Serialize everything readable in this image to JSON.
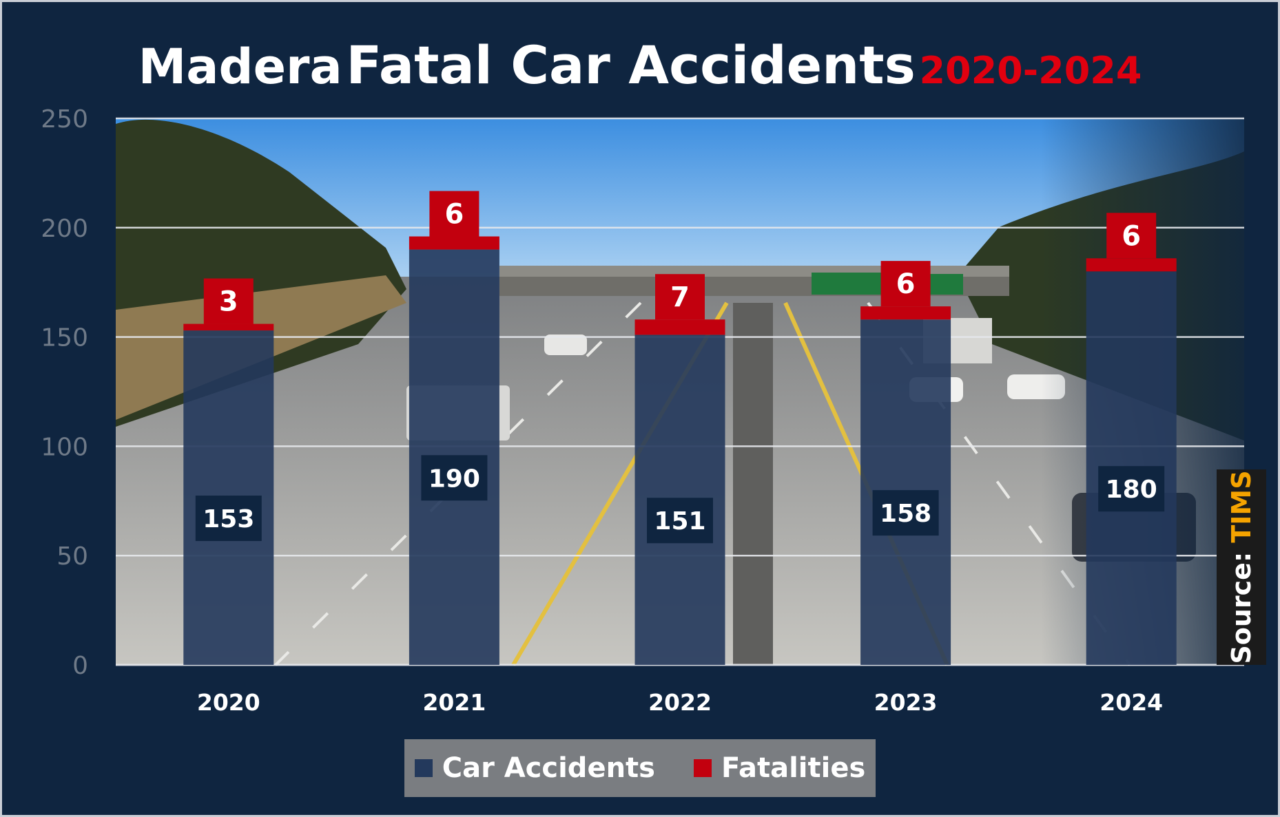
{
  "title": {
    "part1": "Madera",
    "part2": "Fatal Car Accidents",
    "part3": "2020-2024"
  },
  "source": {
    "prefix": "Source:",
    "name": "TIMS"
  },
  "colors": {
    "background": "#0f2540",
    "bar_accidents": "#23395c",
    "bar_fatalities": "#c2000e",
    "title_accent": "#e0000f",
    "source_accent": "#f5a300"
  },
  "chart_data": {
    "type": "bar",
    "categories": [
      "2020",
      "2021",
      "2022",
      "2023",
      "2024"
    ],
    "series": [
      {
        "name": "Car Accidents",
        "values": [
          153,
          190,
          151,
          158,
          180
        ]
      },
      {
        "name": "Fatalities",
        "values": [
          3,
          6,
          7,
          6,
          6
        ]
      }
    ],
    "stacked": true,
    "yticks": [
      "0",
      "50",
      "100",
      "150",
      "200",
      "250"
    ],
    "ylim": [
      0,
      250
    ],
    "grid": true,
    "legend_position": "bottom",
    "background": "photo of a highway overpass"
  }
}
